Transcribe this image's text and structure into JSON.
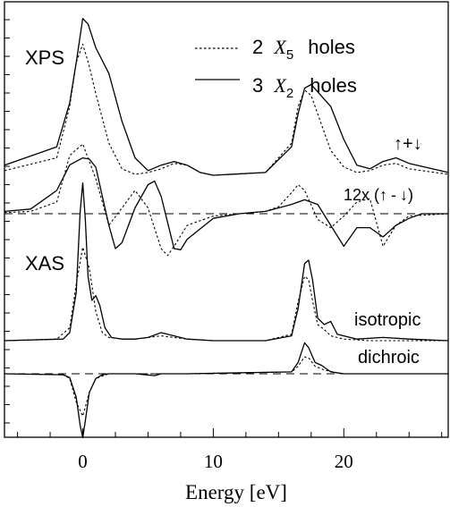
{
  "chart_data": {
    "type": "line",
    "xlabel": "Energy [eV]",
    "xlim": [
      -6,
      28
    ],
    "xticks": [
      0,
      10,
      20
    ],
    "grid": false,
    "legend": {
      "placement": "top-right",
      "entries": [
        {
          "style": "dotted",
          "label_pre": "2",
          "symbol": "X",
          "sub": "5",
          "label_post": "holes"
        },
        {
          "style": "solid",
          "label_pre": "3",
          "symbol": "X",
          "sub": "2",
          "label_post": "holes"
        }
      ]
    },
    "annotations": {
      "xps": "XPS",
      "xas": "XAS",
      "sum": {
        "up": "↑",
        "plus": "+",
        "down": "↓"
      },
      "diff": {
        "prefix": "12x (",
        "up": "↑",
        "minus": "-",
        "down": "↓",
        "suffix": ")"
      },
      "isotropic": "isotropic",
      "dichroic": "dichroic"
    },
    "panels": [
      {
        "id": "xps-sum",
        "baseline": 0,
        "series": [
          {
            "style": "solid",
            "x": [
              -6,
              -2,
              -1,
              -0.5,
              0,
              0.4,
              1,
              2,
              3,
              4,
              5,
              6,
              7,
              8,
              9,
              10,
              14,
              16,
              16.5,
              17,
              17.5,
              18,
              19,
              20,
              21,
              22,
              23,
              24,
              25,
              28
            ],
            "y": [
              0.06,
              0.16,
              0.4,
              0.62,
              0.86,
              0.83,
              0.7,
              0.56,
              0.3,
              0.1,
              0.03,
              0.06,
              0.08,
              0.06,
              0.02,
              0.005,
              0.02,
              0.16,
              0.34,
              0.48,
              0.5,
              0.46,
              0.38,
              0.2,
              0.06,
              0.04,
              0.08,
              0.1,
              0.07,
              0.02
            ]
          },
          {
            "style": "dotted",
            "x": [
              -6,
              -2,
              -1,
              -0.5,
              0,
              0.5,
              1,
              2,
              3,
              4,
              5,
              6,
              7,
              8,
              9,
              10,
              14,
              16,
              16.5,
              17,
              17.5,
              18,
              19,
              20,
              21,
              22,
              23,
              24,
              25,
              28
            ],
            "y": [
              0.03,
              0.1,
              0.38,
              0.62,
              0.72,
              0.6,
              0.45,
              0.18,
              0.04,
              0.01,
              0.02,
              0.04,
              0.07,
              0.06,
              0.02,
              0.005,
              0.02,
              0.18,
              0.38,
              0.47,
              0.44,
              0.34,
              0.14,
              0.05,
              0.02,
              0.03,
              0.06,
              0.07,
              0.04,
              0.01
            ]
          }
        ]
      },
      {
        "id": "xps-diff",
        "baseline": 0,
        "series": [
          {
            "style": "solid",
            "x": [
              -6,
              -4,
              -2,
              -1,
              0,
              0.5,
              1,
              2,
              2.5,
              3,
              4,
              5,
              5.5,
              6,
              7,
              7.5,
              8,
              10,
              12,
              14,
              16,
              17,
              18,
              19,
              20,
              21,
              22,
              23,
              24,
              25,
              26,
              28
            ],
            "y": [
              0.02,
              0.04,
              0.2,
              0.42,
              0.48,
              0.47,
              0.4,
              -0.1,
              -0.3,
              -0.25,
              0.05,
              0.25,
              0.28,
              0.15,
              -0.3,
              -0.31,
              -0.22,
              -0.04,
              0.0,
              0.02,
              0.08,
              0.12,
              0.08,
              -0.1,
              -0.28,
              -0.12,
              -0.12,
              -0.2,
              -0.1,
              -0.04,
              0.0,
              0.0
            ]
          },
          {
            "style": "dotted",
            "x": [
              -6,
              -4,
              -2,
              -1,
              0,
              1,
              2,
              3,
              4,
              5,
              6,
              6.5,
              7,
              8,
              10,
              12,
              14,
              15,
              16,
              16.5,
              17,
              18,
              19,
              20,
              21,
              22,
              23,
              24,
              25,
              28
            ],
            "y": [
              0.01,
              0.02,
              0.1,
              0.5,
              0.6,
              0.3,
              -0.1,
              0.05,
              0.2,
              0.05,
              -0.3,
              -0.36,
              -0.28,
              -0.1,
              -0.02,
              0.0,
              0.02,
              0.06,
              0.18,
              0.25,
              0.2,
              -0.05,
              -0.12,
              -0.02,
              0.1,
              0.13,
              -0.28,
              -0.1,
              -0.02,
              0.0
            ]
          }
        ]
      },
      {
        "id": "xas-isotropic",
        "baseline": 0,
        "series": [
          {
            "style": "solid",
            "x": [
              -6,
              -1.5,
              -1,
              -0.5,
              -0.2,
              0,
              0.2,
              0.4,
              0.7,
              1,
              1.3,
              1.7,
              2.2,
              3,
              4,
              5,
              6,
              7,
              8,
              10,
              14,
              16,
              16.5,
              17,
              17.3,
              17.6,
              18,
              18.5,
              19,
              19.5,
              21,
              23,
              25,
              28
            ],
            "y": [
              0.0,
              0.01,
              0.05,
              0.3,
              0.8,
              0.98,
              0.75,
              0.4,
              0.25,
              0.28,
              0.22,
              0.08,
              0.02,
              0.01,
              0.01,
              0.02,
              0.05,
              0.03,
              0.01,
              0.0,
              0.0,
              0.03,
              0.2,
              0.48,
              0.5,
              0.38,
              0.14,
              0.1,
              0.12,
              0.04,
              0.01,
              0.02,
              0.01,
              0.0
            ]
          },
          {
            "style": "dotted",
            "x": [
              -6,
              -2,
              -1,
              -0.5,
              0,
              0.5,
              1,
              1.5,
              2,
              3,
              4,
              6,
              8,
              10,
              14,
              16,
              16.5,
              17,
              17.3,
              17.6,
              18,
              18.5,
              19,
              20,
              22,
              28
            ],
            "y": [
              0.0,
              0.01,
              0.08,
              0.35,
              0.58,
              0.45,
              0.18,
              0.05,
              0.02,
              0.01,
              0.01,
              0.03,
              0.01,
              0.0,
              0.0,
              0.04,
              0.24,
              0.4,
              0.38,
              0.25,
              0.1,
              0.07,
              0.03,
              0.01,
              0.0,
              0.0
            ]
          }
        ]
      },
      {
        "id": "xas-dichroic",
        "baseline": 0,
        "series": [
          {
            "style": "solid",
            "x": [
              -6,
              -1.5,
              -1,
              -0.5,
              -0.2,
              0,
              0.2,
              0.5,
              1,
              1.5,
              2,
              4,
              5.5,
              6,
              8,
              16,
              16.5,
              17,
              17.3,
              17.8,
              18.3,
              19,
              20,
              28
            ],
            "y": [
              0.0,
              -0.01,
              -0.04,
              -0.25,
              -0.55,
              -0.68,
              -0.5,
              -0.2,
              -0.05,
              -0.01,
              0.0,
              0.0,
              -0.02,
              0.0,
              0.0,
              0.02,
              0.12,
              0.33,
              0.28,
              0.12,
              0.09,
              0.02,
              0.0,
              0.0
            ]
          },
          {
            "style": "dotted",
            "x": [
              -6,
              -1.5,
              -1,
              -0.5,
              0,
              0.5,
              1,
              2,
              4,
              6,
              8,
              16,
              16.5,
              17,
              17.3,
              17.8,
              18.5,
              19.5,
              20,
              28
            ],
            "y": [
              0.0,
              -0.01,
              -0.05,
              -0.3,
              -0.45,
              -0.2,
              -0.05,
              0.0,
              0.0,
              0.0,
              0.0,
              0.02,
              0.08,
              0.18,
              0.17,
              0.08,
              0.04,
              0.01,
              0.0,
              0.0
            ]
          }
        ]
      }
    ]
  }
}
